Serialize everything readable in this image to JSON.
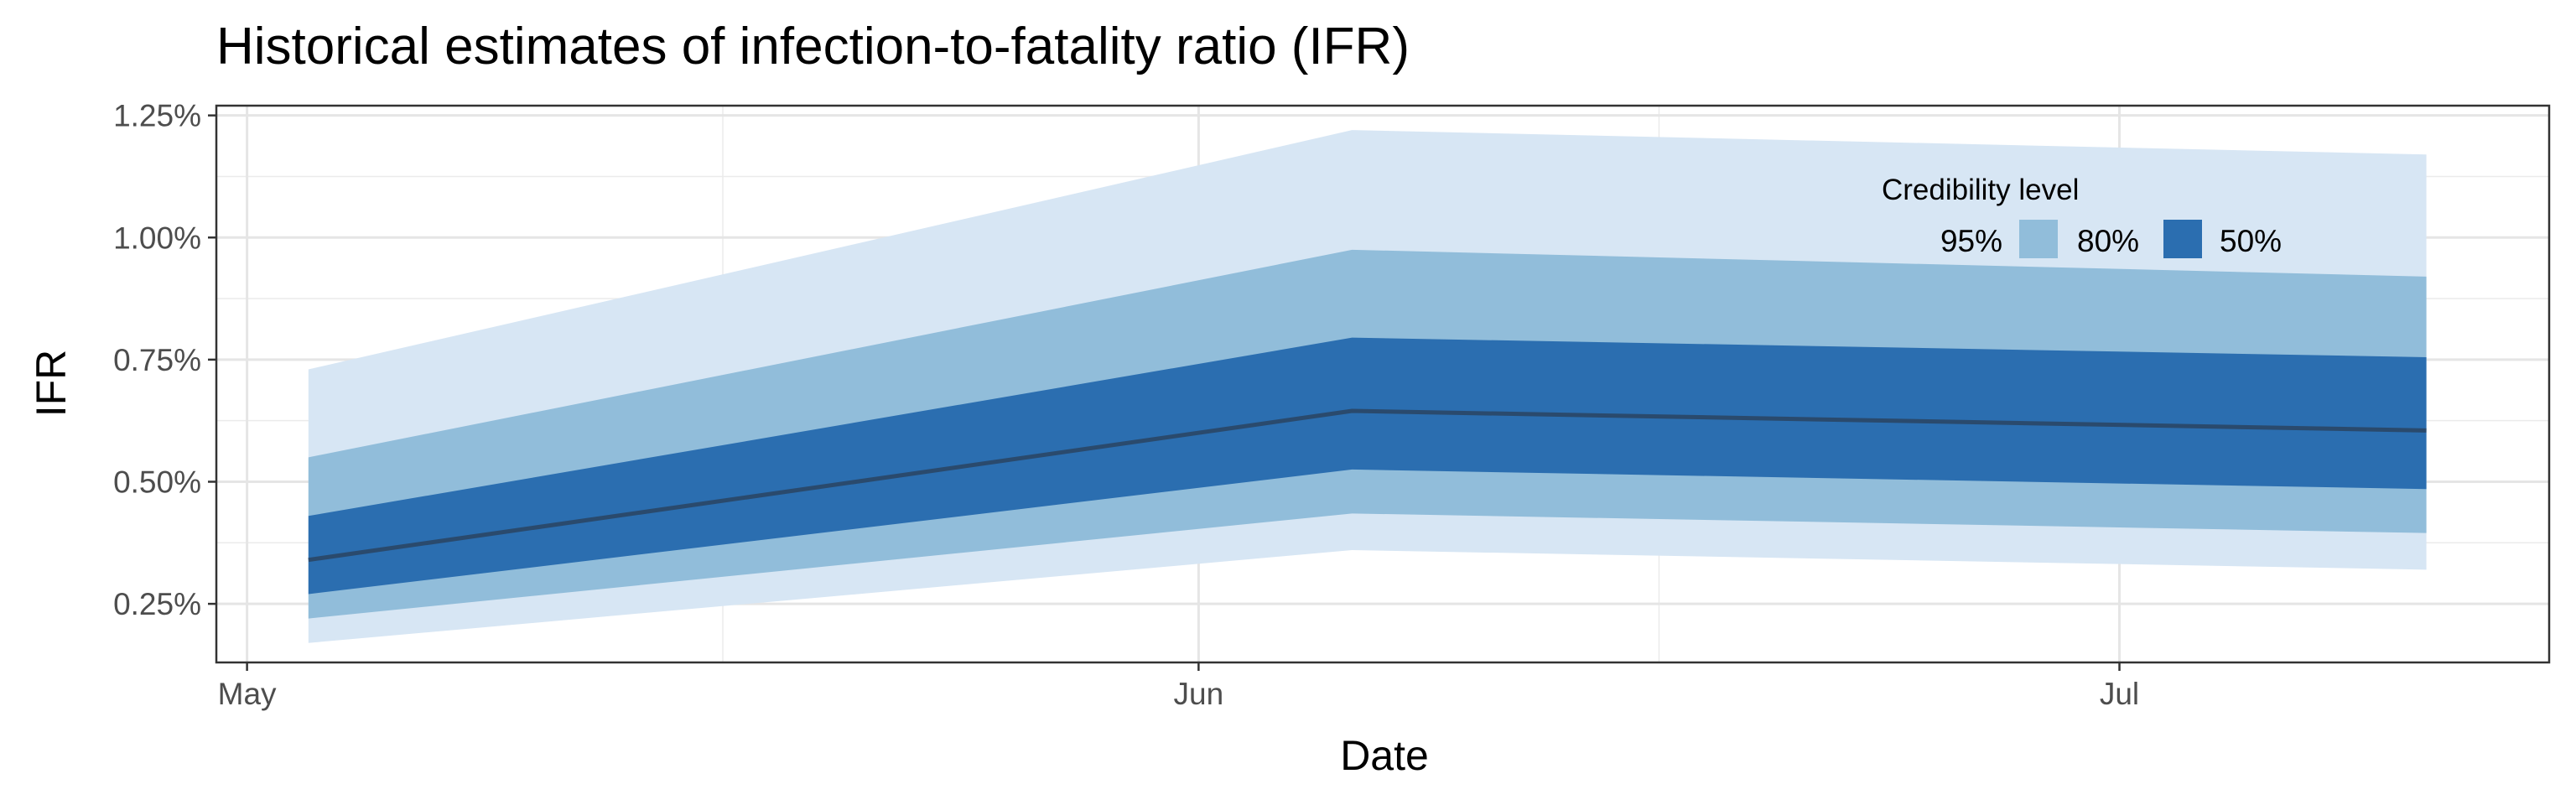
{
  "chart_data": {
    "type": "area",
    "title": "Historical estimates of infection-to-fatality ratio (IFR)",
    "xlabel": "Date",
    "ylabel": "IFR",
    "x_ticks": [
      {
        "date": "2020-05-01",
        "label": "May"
      },
      {
        "date": "2020-06-01",
        "label": "Jun"
      },
      {
        "date": "2020-07-01",
        "label": "Jul"
      }
    ],
    "y_ticks": [
      0.25,
      0.5,
      0.75,
      1.0,
      1.25
    ],
    "y_tick_labels": [
      "0.25%",
      "0.50%",
      "0.75%",
      "1.00%",
      "1.25%"
    ],
    "xlim": [
      "2020-04-30",
      "2020-07-15"
    ],
    "ylim": [
      0.13,
      1.27
    ],
    "grid": true,
    "legend": {
      "title": "Credibility level",
      "position": "top-right",
      "items": [
        {
          "label": "95%",
          "color": "#d7e6f4"
        },
        {
          "label": "80%",
          "color": "#91bdda"
        },
        {
          "label": "50%",
          "color": "#2b6eb0"
        }
      ]
    },
    "x": [
      "2020-05-03",
      "2020-06-06",
      "2020-07-11"
    ],
    "median": [
      0.34,
      0.645,
      0.605
    ],
    "bands": [
      {
        "level": "95%",
        "color": "#d7e6f4",
        "lower": [
          0.17,
          0.36,
          0.32
        ],
        "upper": [
          0.73,
          1.22,
          1.17
        ]
      },
      {
        "level": "80%",
        "color": "#91bdda",
        "lower": [
          0.22,
          0.435,
          0.395
        ],
        "upper": [
          0.55,
          0.975,
          0.92
        ]
      },
      {
        "level": "50%",
        "color": "#2b6eb0",
        "lower": [
          0.27,
          0.525,
          0.485
        ],
        "upper": [
          0.43,
          0.795,
          0.755
        ]
      }
    ],
    "median_color": "#2a4a6d"
  }
}
